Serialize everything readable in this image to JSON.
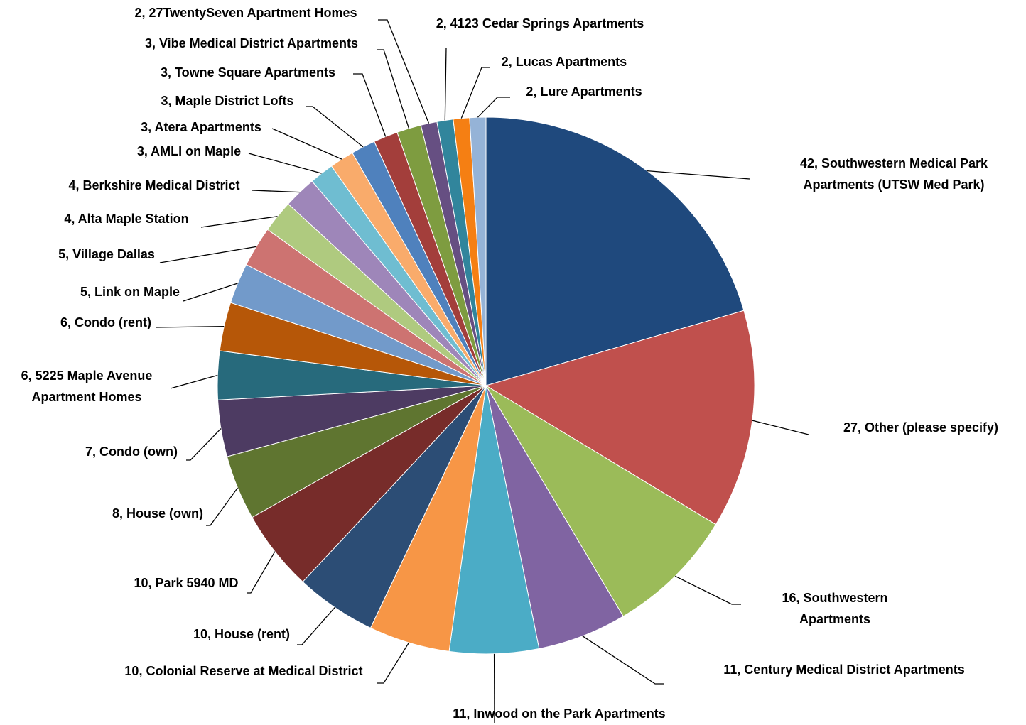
{
  "chart_data": {
    "type": "pie",
    "values": [
      42,
      27,
      16,
      11,
      11,
      10,
      10,
      10,
      8,
      7,
      6,
      6,
      5,
      5,
      4,
      4,
      3,
      3,
      3,
      3,
      3,
      2,
      2,
      2,
      2
    ],
    "value_labels": [
      "42, Southwestern Medical Park\nApartments (UTSW Med Park)",
      "27, Other (please specify)",
      "16, Southwestern\nApartments",
      "11, Century Medical District Apartments",
      "11, Inwood on the Park Apartments",
      "10, Colonial Reserve at Medical District",
      "10, House (rent)",
      "10, Park 5940 MD",
      "8, House (own)",
      "7, Condo (own)",
      "6, 5225 Maple Avenue\nApartment Homes",
      "6, Condo (rent)",
      "5, Link on Maple",
      "5, Village Dallas",
      "4, Alta Maple Station",
      "4, Berkshire Medical District",
      "3, AMLI on Maple",
      "3, Atera Apartments",
      "3, Maple District Lofts",
      "3, Towne Square Apartments",
      "3, Vibe Medical District Apartments",
      "2, 27TwentySeven Apartment Homes",
      "2, 4123 Cedar Springs Apartments",
      "2, Lucas Apartments",
      "2, Lure Apartments"
    ],
    "colors": [
      "#1F497D",
      "#C0504D",
      "#9BBB59",
      "#8064A2",
      "#4BACC6",
      "#F79646",
      "#2C4D75",
      "#772C2A",
      "#5F7530",
      "#4D3B62",
      "#276A7C",
      "#B65708",
      "#729ACA",
      "#CD7371",
      "#AFCA7F",
      "#9E86B9",
      "#6FBDD1",
      "#F9AB6B",
      "#4F81BD",
      "#A33E3B",
      "#7E9C40",
      "#664F82",
      "#31859C",
      "#F57F13",
      "#95B3D7"
    ]
  }
}
